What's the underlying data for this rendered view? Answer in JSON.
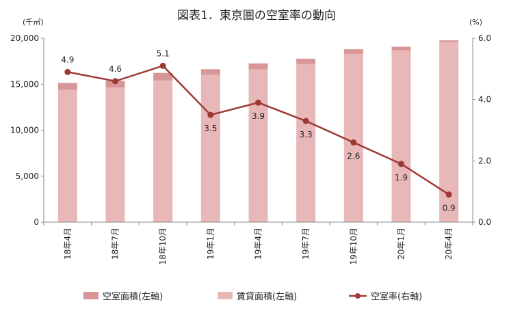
{
  "chart_data": {
    "type": "bar+line",
    "title": "図表1．東京圏の空室率の動向",
    "left_unit": "(千㎡)",
    "right_unit": "(%)",
    "categories": [
      "18年4月",
      "18年7月",
      "18年10月",
      "19年1月",
      "19年4月",
      "19年7月",
      "19年10月",
      "20年1月",
      "20年4月"
    ],
    "series": [
      {
        "name": "賃貸面積(左軸)",
        "type": "bar",
        "axis": "left",
        "color": "#e8b8b8",
        "values": [
          14400,
          14650,
          15400,
          16050,
          16600,
          17200,
          18300,
          18700,
          19600
        ]
      },
      {
        "name": "空室面積(左軸)",
        "type": "bar",
        "axis": "left",
        "color": "#d99696",
        "values": [
          750,
          730,
          830,
          580,
          670,
          580,
          500,
          380,
          180
        ]
      },
      {
        "name": "空室率(右軸)",
        "type": "line",
        "axis": "right",
        "color": "#9e3a36",
        "values": [
          4.9,
          4.6,
          5.1,
          3.5,
          3.9,
          3.3,
          2.6,
          1.9,
          0.9
        ]
      }
    ],
    "left_axis": {
      "min": 0,
      "max": 20000,
      "ticks": [
        "0",
        "5,000",
        "10,000",
        "15,000",
        "20,000"
      ]
    },
    "right_axis": {
      "min": 0,
      "max": 6,
      "ticks": [
        "0.0",
        "2.0",
        "4.0",
        "6.0"
      ]
    },
    "legend": [
      "空室面積(左軸)",
      "賃貸面積(左軸)",
      "空室率(右軸)"
    ],
    "legend_position": "bottom",
    "grid": false
  }
}
